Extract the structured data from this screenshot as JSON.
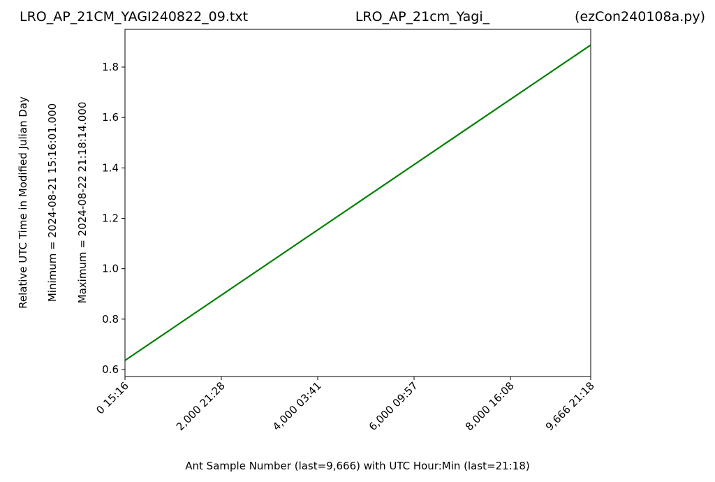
{
  "chart_data": {
    "type": "line",
    "title_left": "LRO_AP_21CM_YAGI240822_09.txt",
    "title_center": "LRO_AP_21cm_Yagi_",
    "title_right": "(ezCon240108a.py)",
    "ylabel_lines": [
      "Relative UTC Time in Modified Julian Day",
      "Minimum = 2024-08-21   15:16:01.000",
      "Maximum = 2024-08-22   21:18:14.000"
    ],
    "xlabel": "Ant Sample Number (last=9,666) with UTC Hour:Min (last=21:18)",
    "x": [
      0,
      9666
    ],
    "series": [
      {
        "name": "Relative UTC Time",
        "color": "#008000",
        "values": [
          0.6361,
          1.8876
        ]
      }
    ],
    "xlim": [
      0,
      9666
    ],
    "xticks": [
      {
        "value": 0,
        "label": "0  15:16"
      },
      {
        "value": 2000,
        "label": "2,000  21:28"
      },
      {
        "value": 4000,
        "label": "4,000  03:41"
      },
      {
        "value": 6000,
        "label": "6,000  09:57"
      },
      {
        "value": 8000,
        "label": "8,000  16:08"
      },
      {
        "value": 9666,
        "label": "9,666  21:18"
      }
    ],
    "ylim": [
      0.5723,
      1.9497
    ],
    "yticks": [
      0.6,
      0.8,
      {
        "value": 1.0,
        "label": "1.0"
      },
      1.2,
      1.4,
      1.6,
      1.8
    ],
    "grid": false
  }
}
